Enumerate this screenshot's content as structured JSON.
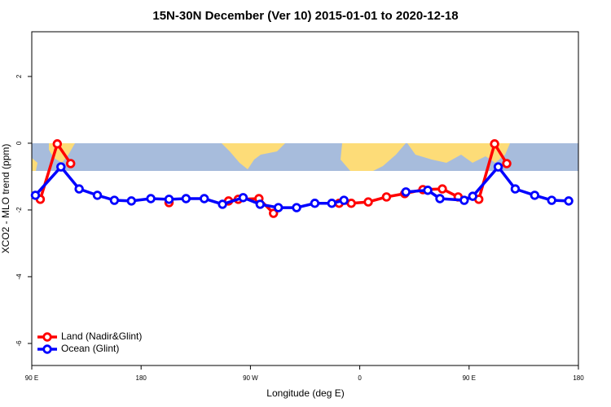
{
  "chart_data": {
    "type": "line",
    "title": "15N-30N December (Ver 10)   2015-01-01 to 2020-12-18",
    "x_label": "Longitude (deg E)",
    "y_label": "XCO2 - MLO trend (ppm)",
    "xlim": [
      90,
      540
    ],
    "xticks": [
      {
        "value": 90,
        "label": "90 E"
      },
      180,
      {
        "value": 270,
        "label": "90 W"
      },
      {
        "value": 360,
        "label": "0"
      },
      {
        "value": 450,
        "label": "90 E"
      },
      {
        "value": 540,
        "label": "180"
      }
    ],
    "ylim": [
      -6.66,
      3.34
    ],
    "yticks": [
      -6,
      -4,
      -2,
      0,
      2
    ],
    "legend": "bottom-left",
    "series": [
      {
        "name": "Land (Nadir&Glint)",
        "color": "#ff0000",
        "x": [
          97,
          111,
          122,
          null,
          203,
          null,
          252,
          260,
          277,
          289,
          null,
          343,
          353,
          367,
          382,
          397,
          412,
          428,
          441,
          458,
          471,
          481
        ],
        "values": [
          -1.68,
          -0.02,
          -0.61,
          null,
          -1.78,
          null,
          -1.73,
          -1.68,
          -1.66,
          -2.1,
          null,
          -1.8,
          -1.8,
          -1.76,
          -1.61,
          -1.51,
          -1.39,
          -1.37,
          -1.61,
          -1.68,
          -0.02,
          -0.61
        ]
      },
      {
        "name": "Ocean (Glint)",
        "color": "#0000ff",
        "x": [
          93,
          114,
          129,
          144,
          158,
          172,
          188,
          203,
          217,
          232,
          247,
          264,
          278,
          293,
          308,
          323,
          337,
          347,
          null,
          398,
          416,
          426,
          446,
          453,
          474,
          488,
          504,
          518,
          532
        ],
        "values": [
          -1.56,
          -0.71,
          -1.37,
          -1.56,
          -1.71,
          -1.73,
          -1.66,
          -1.68,
          -1.66,
          -1.66,
          -1.83,
          -1.63,
          -1.83,
          -1.93,
          -1.93,
          -1.8,
          -1.8,
          -1.71,
          null,
          -1.46,
          -1.41,
          -1.66,
          -1.71,
          -1.59,
          -0.71,
          -1.37,
          -1.56,
          -1.71,
          -1.73
        ]
      }
    ]
  }
}
